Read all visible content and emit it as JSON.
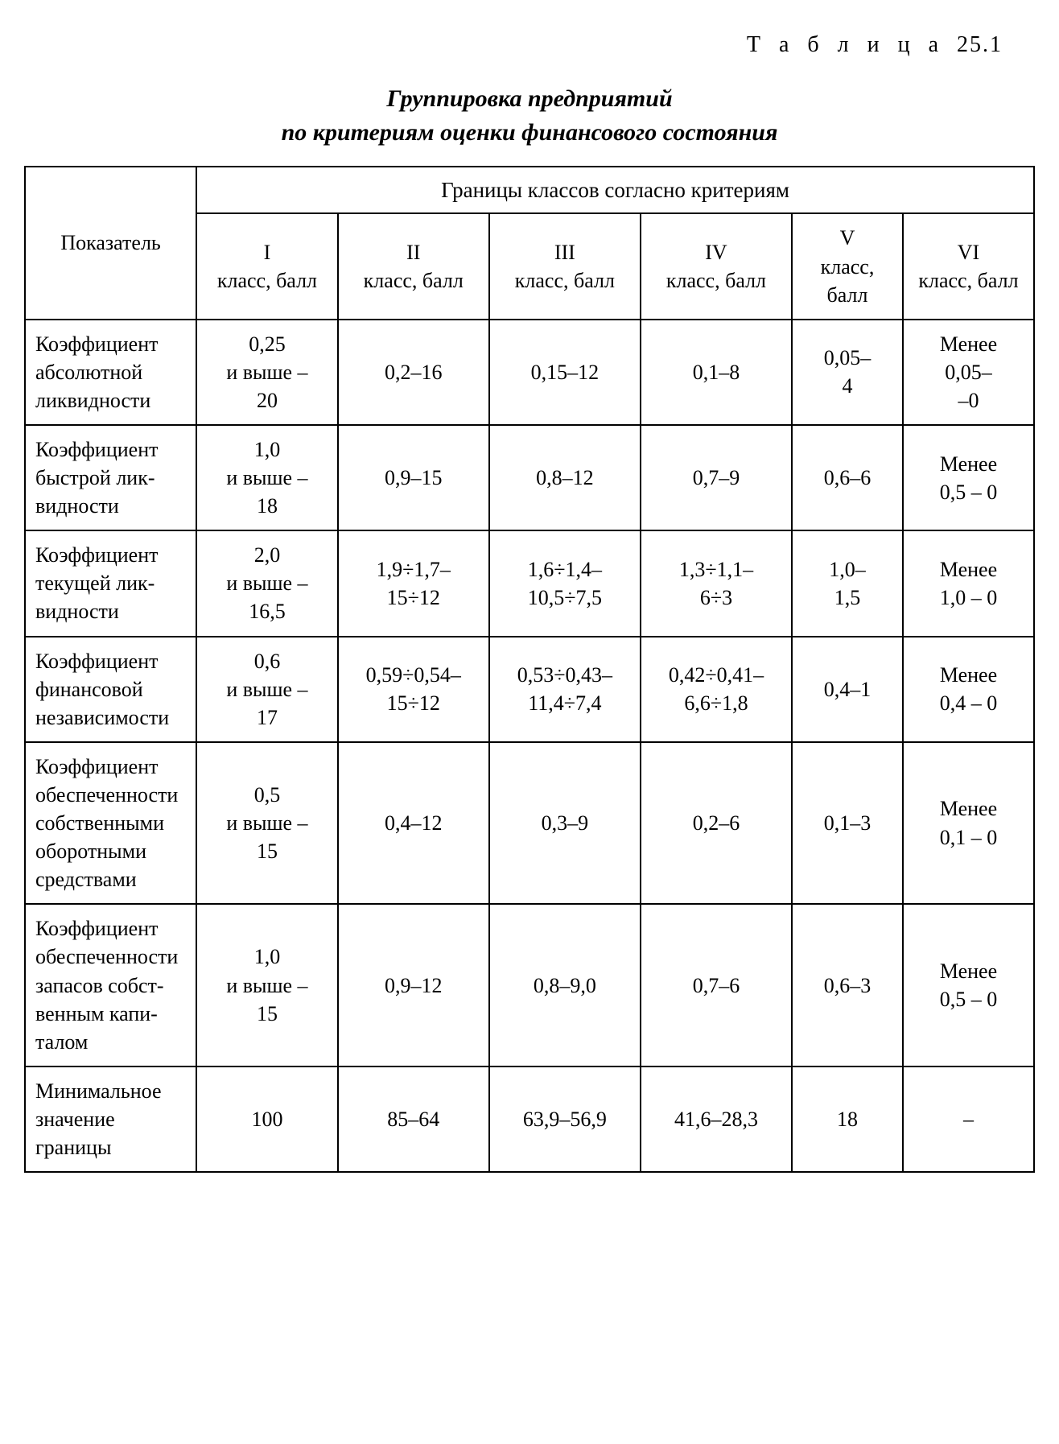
{
  "meta": {
    "table_number_label": "Т а б л и ц а",
    "table_number_value": "25.1",
    "title_line1": "Группировка предприятий",
    "title_line2": "по критериям оценки финансового состояния"
  },
  "headers": {
    "indicator": "Показатель",
    "group_header": "Границы классов согласно критериям",
    "columns": [
      {
        "roman": "I",
        "label": "класс, балл"
      },
      {
        "roman": "II",
        "label": "класс, балл"
      },
      {
        "roman": "III",
        "label": "класс, балл"
      },
      {
        "roman": "IV",
        "label": "класс, балл"
      },
      {
        "roman": "V",
        "label": "класс, балл"
      },
      {
        "roman": "VI",
        "label": "класс, балл"
      }
    ]
  },
  "rows": [
    {
      "indicator": "Коэффициент абсолютной ликвидности",
      "cells": [
        "0,25\nи выше –\n20",
        "0,2–16",
        "0,15–12",
        "0,1–8",
        "0,05–\n4",
        "Менее\n0,05–\n–0"
      ]
    },
    {
      "indicator": "Коэффициент быстрой лик-видности",
      "cells": [
        "1,0\nи выше –\n18",
        "0,9–15",
        "0,8–12",
        "0,7–9",
        "0,6–6",
        "Менее\n0,5 – 0"
      ]
    },
    {
      "indicator": "Коэффициент текущей лик-видности",
      "cells": [
        "2,0\nи выше –\n16,5",
        "1,9÷1,7–\n15÷12",
        "1,6÷1,4–\n10,5÷7,5",
        "1,3÷1,1–\n6÷3",
        "1,0–\n1,5",
        "Менее\n1,0 – 0"
      ]
    },
    {
      "indicator": "Коэффициент финансовой независимости",
      "cells": [
        "0,6\nи выше –\n17",
        "0,59÷0,54–\n15÷12",
        "0,53÷0,43–\n11,4÷7,4",
        "0,42÷0,41–\n6,6÷1,8",
        "0,4–1",
        "Менее\n0,4 – 0"
      ]
    },
    {
      "indicator": "Коэффициент обеспеченности собственными оборотными средствами",
      "cells": [
        "0,5\nи выше –\n15",
        "0,4–12",
        "0,3–9",
        "0,2–6",
        "0,1–3",
        "Менее\n0,1 – 0"
      ]
    },
    {
      "indicator": "Коэффициент обеспеченности запасов собст-венным капи-талом",
      "cells": [
        "1,0\nи выше –\n15",
        "0,9–12",
        "0,8–9,0",
        "0,7–6",
        "0,6–3",
        "Менее\n0,5 – 0"
      ]
    },
    {
      "indicator": "Минимальное значение границы",
      "cells": [
        "100",
        "85–64",
        "63,9–56,9",
        "41,6–28,3",
        "18",
        "–"
      ]
    }
  ],
  "style": {
    "font_family": "Times New Roman",
    "font_size_body": 26,
    "font_size_title": 30,
    "font_size_table_number": 28,
    "border_color": "#000000",
    "background_color": "#ffffff",
    "text_color": "#000000",
    "border_width": 2
  }
}
